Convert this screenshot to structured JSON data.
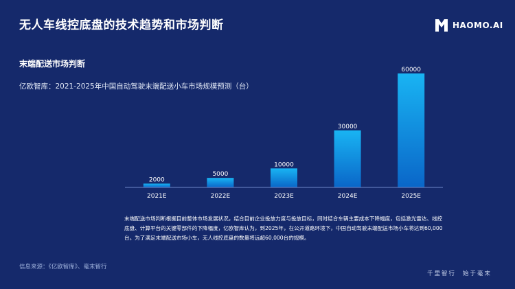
{
  "header": {
    "title": "无人车线控底盘的技术趋势和市场判断",
    "logo_text": "HAOMO.AI"
  },
  "section": {
    "title": "末端配送市场判断",
    "subtitle": "亿欧智库：2021-2025年中国自动驾驶末端配送小车市场规模预测（台）"
  },
  "chart_data": {
    "type": "bar",
    "categories": [
      "2021E",
      "2022E",
      "2023E",
      "2024E",
      "2025E"
    ],
    "values": [
      2000,
      5000,
      10000,
      30000,
      60000
    ],
    "data_labels": [
      "2000",
      "5000",
      "10000",
      "30000",
      "60000"
    ],
    "title": "",
    "xlabel": "",
    "ylabel": "",
    "ylim": [
      0,
      60000
    ],
    "grid": false,
    "bar_color_top": "#19b4f3",
    "bar_color_bottom": "#0a66c8"
  },
  "description": "末端配送市场判断根据目前整体市场发展状况，结合目前企业投放力度与投放目标，同时结合车辆主要成本下降幅度，包括激光雷达、线控底盘、计算平台的关键零部件的下降幅度，亿欧智库认为，到2025年，在公开道路环境下，中国自动驾驶末端配送市场小车将达到60,000台。为了满足末端配送市场小车，无人线控底盘的数量将远超60,000台的规模。",
  "footer": {
    "source": "信息来源：《亿欧智库》、毫末智行",
    "slogan_1": "千里智行",
    "slogan_2": "始于毫末"
  },
  "colors": {
    "background": "#15296b",
    "axis": "#6f86c8"
  }
}
